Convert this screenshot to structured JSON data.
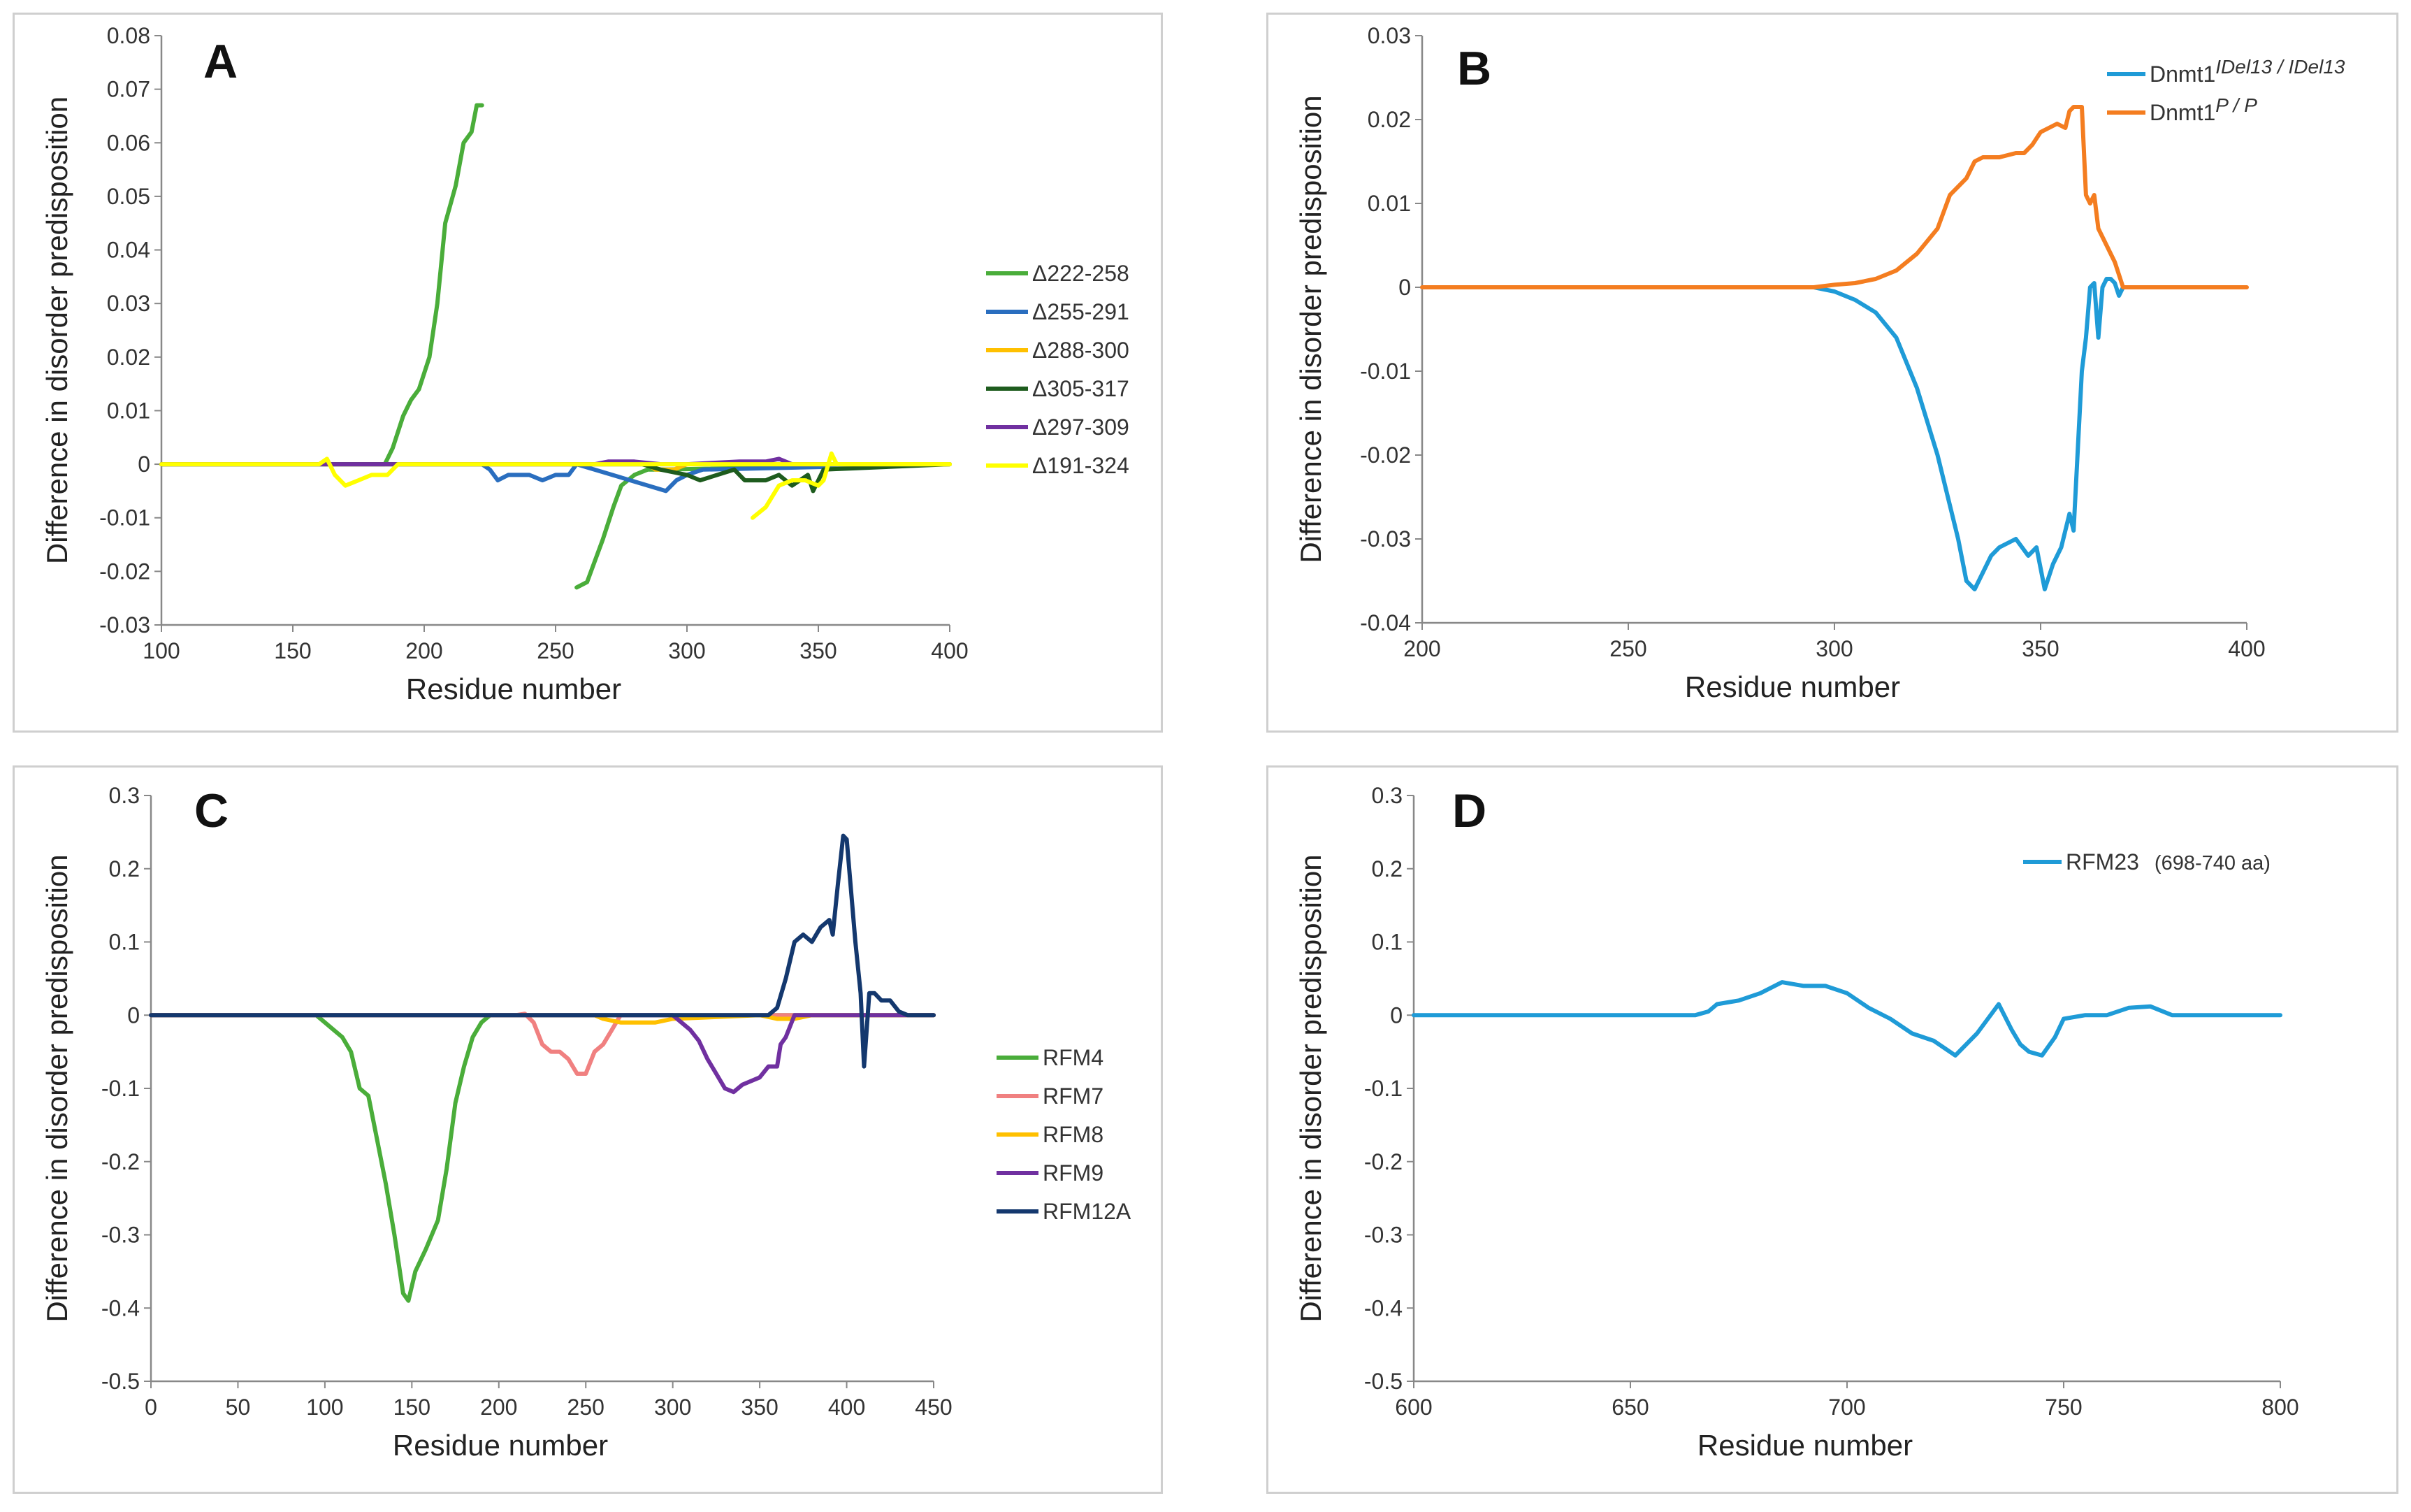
{
  "chart_data": [
    {
      "id": "A",
      "type": "line",
      "panel_label": "A",
      "xlabel": "Residue number",
      "ylabel": "Difference in disorder predisposition",
      "xlim": [
        100,
        400
      ],
      "ylim": [
        -0.03,
        0.08
      ],
      "xticks": [
        100,
        150,
        200,
        250,
        300,
        350,
        400
      ],
      "yticks": [
        "-0.03",
        "-0.02",
        "-0.01",
        "0",
        "0.01",
        "0.02",
        "0.03",
        "0.04",
        "0.05",
        "0.06",
        "0.07",
        "0.08"
      ],
      "legend_position": "right",
      "series": [
        {
          "name": "Δ222-258",
          "color": "#4aad3a",
          "x": [
            100,
            185,
            188,
            192,
            195,
            198,
            202,
            205,
            208,
            212,
            215,
            218,
            220,
            222
          ],
          "y": [
            0,
            0,
            0.003,
            0.009,
            0.012,
            0.014,
            0.02,
            0.03,
            0.045,
            0.052,
            0.06,
            0.062,
            0.067,
            0.067
          ]
        },
        {
          "name": "Δ222-258 (post)",
          "legend": false,
          "color": "#4aad3a",
          "x": [
            258,
            262,
            265,
            268,
            272,
            275,
            280,
            285,
            290,
            400
          ],
          "y": [
            -0.023,
            -0.022,
            -0.018,
            -0.014,
            -0.008,
            -0.004,
            -0.002,
            -0.001,
            -0.001,
            0
          ]
        },
        {
          "name": "Δ255-291",
          "color": "#2a6ebf",
          "x": [
            100,
            222,
            225,
            228,
            232,
            236,
            240,
            245,
            250,
            255,
            258,
            292,
            296,
            300,
            306,
            400
          ],
          "y": [
            0,
            0,
            -0.001,
            -0.003,
            -0.002,
            -0.002,
            -0.002,
            -0.003,
            -0.002,
            -0.002,
            0,
            -0.005,
            -0.003,
            -0.002,
            -0.001,
            0
          ]
        },
        {
          "name": "Δ288-300",
          "color": "#ffc000",
          "x": [
            100,
            285,
            288,
            295,
            300,
            400
          ],
          "y": [
            0,
            0,
            -0.001,
            -0.001,
            0,
            0
          ]
        },
        {
          "name": "Δ305-317",
          "color": "#1e5c1e",
          "x": [
            100,
            283,
            290,
            300,
            305,
            318,
            322,
            330,
            335,
            340,
            346,
            348,
            352,
            400
          ],
          "y": [
            0,
            0,
            -0.001,
            -0.002,
            -0.003,
            -0.001,
            -0.003,
            -0.003,
            -0.002,
            -0.004,
            -0.002,
            -0.005,
            -0.001,
            0
          ]
        },
        {
          "name": "Δ297-309",
          "color": "#7030a0",
          "x": [
            100,
            265,
            270,
            280,
            290,
            300,
            320,
            330,
            335,
            340,
            350,
            360,
            400
          ],
          "y": [
            0,
            0,
            0.0005,
            0.0005,
            0,
            0,
            0.0005,
            0.0005,
            0.001,
            0,
            0,
            0,
            0
          ]
        },
        {
          "name": "Δ191-324",
          "color": "#ffff00",
          "x": [
            100,
            160,
            163,
            166,
            170,
            175,
            180,
            186,
            190,
            400
          ],
          "y": [
            0,
            0,
            0.001,
            -0.002,
            -0.004,
            -0.003,
            -0.002,
            -0.002,
            0,
            0
          ]
        },
        {
          "name": "Δ191-324 (post)",
          "legend": false,
          "color": "#ffff00",
          "x": [
            325,
            330,
            335,
            340,
            345,
            350,
            352,
            355,
            357,
            400
          ],
          "y": [
            -0.01,
            -0.008,
            -0.004,
            -0.003,
            -0.003,
            -0.004,
            -0.003,
            0.002,
            0,
            0
          ]
        }
      ]
    },
    {
      "id": "B",
      "type": "line",
      "panel_label": "B",
      "xlabel": "Residue number",
      "ylabel": "Difference in disorder predisposition",
      "xlim": [
        200,
        400
      ],
      "ylim": [
        -0.04,
        0.03
      ],
      "xticks": [
        200,
        250,
        300,
        350,
        400
      ],
      "yticks": [
        "-0.04",
        "-0.03",
        "-0.02",
        "-0.01",
        "0",
        "0.01",
        "0.02",
        "0.03"
      ],
      "legend_position": "top-right",
      "series": [
        {
          "name": "Dnmt1",
          "sup": "IDel13 / IDel13",
          "color": "#1f9bd7",
          "x": [
            200,
            295,
            300,
            305,
            310,
            315,
            320,
            325,
            328,
            330,
            332,
            334,
            336,
            338,
            340,
            344,
            347,
            349,
            351,
            353,
            355,
            357,
            358,
            360,
            361,
            362,
            363,
            364,
            365,
            366,
            367,
            368,
            369,
            370
          ],
          "y": [
            0,
            0,
            -0.0005,
            -0.0015,
            -0.003,
            -0.006,
            -0.012,
            -0.02,
            -0.026,
            -0.03,
            -0.035,
            -0.036,
            -0.034,
            -0.032,
            -0.031,
            -0.03,
            -0.032,
            -0.031,
            -0.036,
            -0.033,
            -0.031,
            -0.027,
            -0.029,
            -0.01,
            -0.006,
            0,
            0.0005,
            -0.006,
            0,
            0.001,
            0.001,
            0.0005,
            -0.001,
            0
          ]
        },
        {
          "name": "Dnmt1",
          "sup": "P / P",
          "color": "#f47d20",
          "x": [
            200,
            295,
            300,
            305,
            310,
            315,
            320,
            325,
            328,
            330,
            332,
            334,
            336,
            340,
            344,
            346,
            348,
            350,
            352,
            354,
            356,
            357,
            358,
            360,
            361,
            362,
            363,
            364,
            366,
            368,
            370,
            400
          ],
          "y": [
            0,
            0,
            0.0003,
            0.0005,
            0.001,
            0.002,
            0.004,
            0.007,
            0.011,
            0.012,
            0.013,
            0.015,
            0.0155,
            0.0155,
            0.016,
            0.016,
            0.017,
            0.0185,
            0.019,
            0.0195,
            0.019,
            0.021,
            0.0215,
            0.0215,
            0.011,
            0.01,
            0.011,
            0.007,
            0.005,
            0.003,
            0,
            0
          ]
        }
      ]
    },
    {
      "id": "C",
      "type": "line",
      "panel_label": "C",
      "xlabel": "Residue number",
      "ylabel": "Difference in disorder predisposition",
      "xlim": [
        0,
        450
      ],
      "ylim": [
        -0.5,
        0.3
      ],
      "xticks": [
        0,
        50,
        100,
        150,
        200,
        250,
        300,
        350,
        400,
        450
      ],
      "yticks": [
        "-0.5",
        "-0.4",
        "-0.3",
        "-0.2",
        "-0.1",
        "0",
        "0.1",
        "0.2",
        "0.3"
      ],
      "legend_position": "right",
      "series": [
        {
          "name": "RFM4",
          "color": "#4aad3a",
          "x": [
            0,
            95,
            100,
            105,
            110,
            115,
            120,
            125,
            130,
            135,
            140,
            145,
            148,
            152,
            158,
            165,
            170,
            175,
            180,
            185,
            190,
            195,
            450
          ],
          "y": [
            0,
            0,
            -0.01,
            -0.02,
            -0.03,
            -0.05,
            -0.1,
            -0.11,
            -0.17,
            -0.23,
            -0.3,
            -0.38,
            -0.39,
            -0.35,
            -0.32,
            -0.28,
            -0.21,
            -0.12,
            -0.07,
            -0.03,
            -0.01,
            0,
            0
          ]
        },
        {
          "name": "RFM7",
          "color": "#f08080",
          "x": [
            0,
            210,
            215,
            220,
            225,
            230,
            235,
            240,
            245,
            250,
            255,
            260,
            265,
            270,
            450
          ],
          "y": [
            0,
            0,
            0.002,
            -0.01,
            -0.04,
            -0.05,
            -0.05,
            -0.06,
            -0.08,
            -0.08,
            -0.05,
            -0.04,
            -0.02,
            0,
            0
          ]
        },
        {
          "name": "RFM8",
          "color": "#ffc000",
          "x": [
            0,
            255,
            260,
            270,
            280,
            290,
            300,
            350,
            360,
            370,
            380,
            450
          ],
          "y": [
            0,
            0,
            -0.005,
            -0.01,
            -0.01,
            -0.01,
            -0.005,
            0,
            -0.005,
            -0.005,
            0,
            0
          ]
        },
        {
          "name": "RFM9",
          "color": "#7030a0",
          "x": [
            0,
            300,
            305,
            310,
            315,
            320,
            325,
            330,
            335,
            340,
            345,
            350,
            355,
            360,
            362,
            365,
            370,
            450
          ],
          "y": [
            0,
            0,
            -0.01,
            -0.02,
            -0.035,
            -0.06,
            -0.08,
            -0.1,
            -0.105,
            -0.095,
            -0.09,
            -0.085,
            -0.07,
            -0.07,
            -0.04,
            -0.03,
            0,
            0
          ]
        },
        {
          "name": "RFM12A",
          "color": "#14386e",
          "x": [
            0,
            355,
            360,
            365,
            370,
            375,
            380,
            385,
            390,
            392,
            395,
            398,
            400,
            405,
            408,
            410,
            413,
            416,
            420,
            425,
            430,
            435,
            440,
            450
          ],
          "y": [
            0,
            0,
            0.01,
            0.05,
            0.1,
            0.11,
            0.1,
            0.12,
            0.13,
            0.11,
            0.18,
            0.245,
            0.24,
            0.1,
            0.03,
            -0.07,
            0.03,
            0.03,
            0.02,
            0.02,
            0.005,
            0,
            0,
            0
          ]
        }
      ]
    },
    {
      "id": "D",
      "type": "line",
      "panel_label": "D",
      "xlabel": "Residue number",
      "ylabel": "Difference in disorder predisposition",
      "xlim": [
        600,
        800
      ],
      "ylim": [
        -0.5,
        0.3
      ],
      "xticks": [
        600,
        650,
        700,
        750,
        800
      ],
      "yticks": [
        "-0.5",
        "-0.4",
        "-0.3",
        "-0.2",
        "-0.1",
        "0",
        "0.1",
        "0.2",
        "0.3"
      ],
      "legend_position": "top-right",
      "series": [
        {
          "name": "RFM23",
          "label_suffix": "(698-740 aa)",
          "color": "#1f9bd7",
          "x": [
            600,
            665,
            668,
            670,
            675,
            680,
            685,
            690,
            695,
            700,
            705,
            710,
            715,
            720,
            725,
            730,
            735,
            738,
            740,
            742,
            745,
            748,
            750,
            755,
            760,
            765,
            770,
            775,
            800
          ],
          "y": [
            0,
            0,
            0.005,
            0.015,
            0.02,
            0.03,
            0.045,
            0.04,
            0.04,
            0.03,
            0.01,
            -0.005,
            -0.025,
            -0.035,
            -0.055,
            -0.025,
            0.015,
            -0.02,
            -0.04,
            -0.05,
            -0.055,
            -0.03,
            -0.005,
            0,
            0,
            0.01,
            0.012,
            0,
            0
          ]
        }
      ]
    }
  ]
}
